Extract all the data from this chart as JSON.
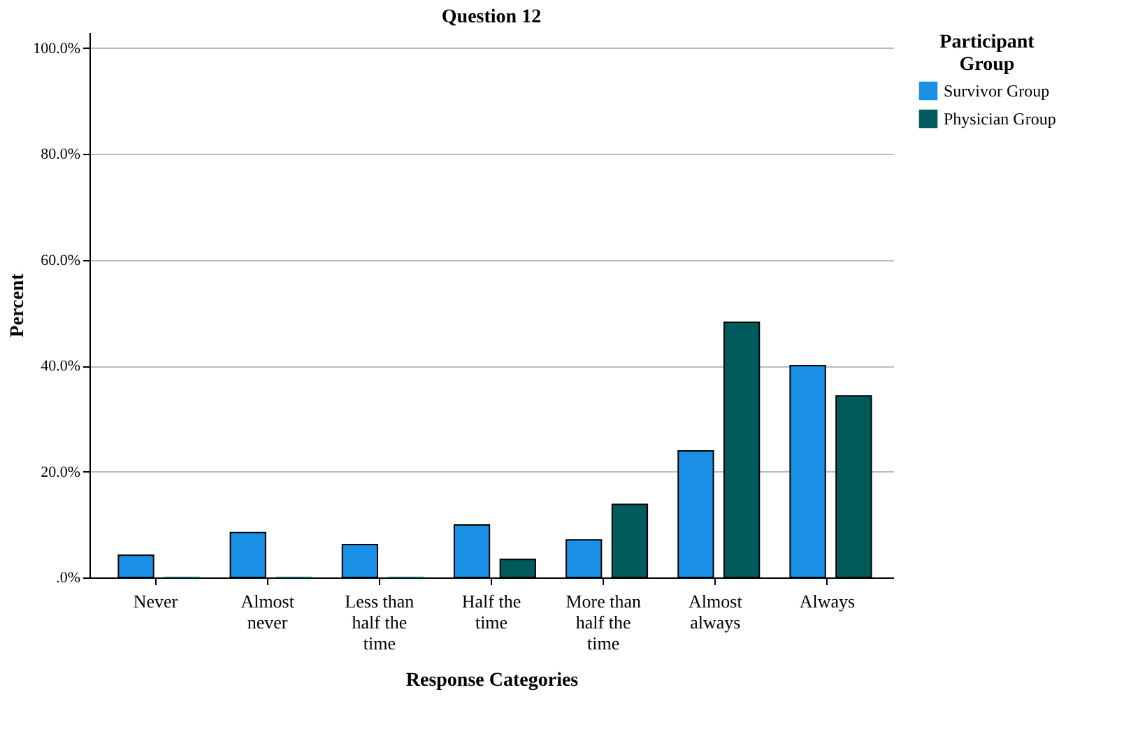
{
  "chart_data": {
    "type": "bar",
    "title": "Question 12",
    "xlabel": "Response Categories",
    "ylabel": "Percent",
    "legend_title": "Participant Group",
    "categories": [
      "Never",
      "Almost never",
      "Less than half the time",
      "Half the time",
      "More than half the time",
      "Almost always",
      "Always"
    ],
    "series": [
      {
        "name": "Survivor Group",
        "color": "#1a8fe6",
        "values": [
          4.2,
          8.5,
          6.2,
          9.9,
          7.1,
          23.9,
          40.0
        ]
      },
      {
        "name": "Physician Group",
        "color": "#005c5c",
        "values": [
          0,
          0,
          0,
          3.4,
          13.8,
          48.2,
          34.3
        ]
      }
    ],
    "ylim": [
      0,
      103
    ],
    "yticks": [
      {
        "value": 0,
        "label": ".0%"
      },
      {
        "value": 20,
        "label": "20.0%"
      },
      {
        "value": 40,
        "label": "40.0%"
      },
      {
        "value": 60,
        "label": "60.0%"
      },
      {
        "value": 80,
        "label": "80.0%"
      },
      {
        "value": 100,
        "label": "100.0%"
      }
    ],
    "grid": "y",
    "legend": "top right"
  }
}
